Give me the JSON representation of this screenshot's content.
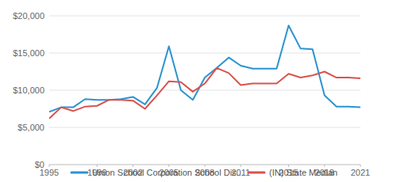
{
  "chart_data": {
    "type": "line",
    "x": [
      1995,
      1996,
      1997,
      1998,
      1999,
      2000,
      2001,
      2002,
      2003,
      2004,
      2005,
      2006,
      2007,
      2008,
      2009,
      2010,
      2011,
      2012,
      2013,
      2014,
      2015,
      2016,
      2017,
      2018,
      2019,
      2020,
      2021
    ],
    "series": [
      {
        "name": "Union School Corporation  School Dis...",
        "color": "#2b93d1",
        "values": [
          7100,
          7700,
          7700,
          8800,
          8700,
          8700,
          8800,
          9100,
          8100,
          10300,
          15900,
          10000,
          8700,
          11700,
          13000,
          14400,
          13300,
          12900,
          12900,
          12900,
          18700,
          15600,
          15500,
          9300,
          7800,
          7800,
          7700
        ]
      },
      {
        "name": "(IN) State Median",
        "color": "#d9534f",
        "values": [
          6200,
          7700,
          7200,
          7800,
          7900,
          8700,
          8700,
          8600,
          7500,
          9300,
          11200,
          11100,
          9800,
          10900,
          13000,
          12300,
          10700,
          10900,
          10900,
          10900,
          12200,
          11700,
          12000,
          12500,
          11700,
          11700,
          11600
        ]
      }
    ],
    "xlim": [
      1995,
      2021
    ],
    "xticks": [
      1995,
      1999,
      2002,
      2005,
      2008,
      2011,
      2015,
      2018,
      2021
    ],
    "ylim": [
      0,
      20000
    ],
    "yticks": [
      {
        "value": 0,
        "label": "$0"
      },
      {
        "value": 5000,
        "label": "$5,000"
      },
      {
        "value": 10000,
        "label": "$10,000"
      },
      {
        "value": 15000,
        "label": "$15,000"
      },
      {
        "value": 20000,
        "label": "$20,000"
      }
    ],
    "grid": true,
    "legend": "bottom"
  }
}
